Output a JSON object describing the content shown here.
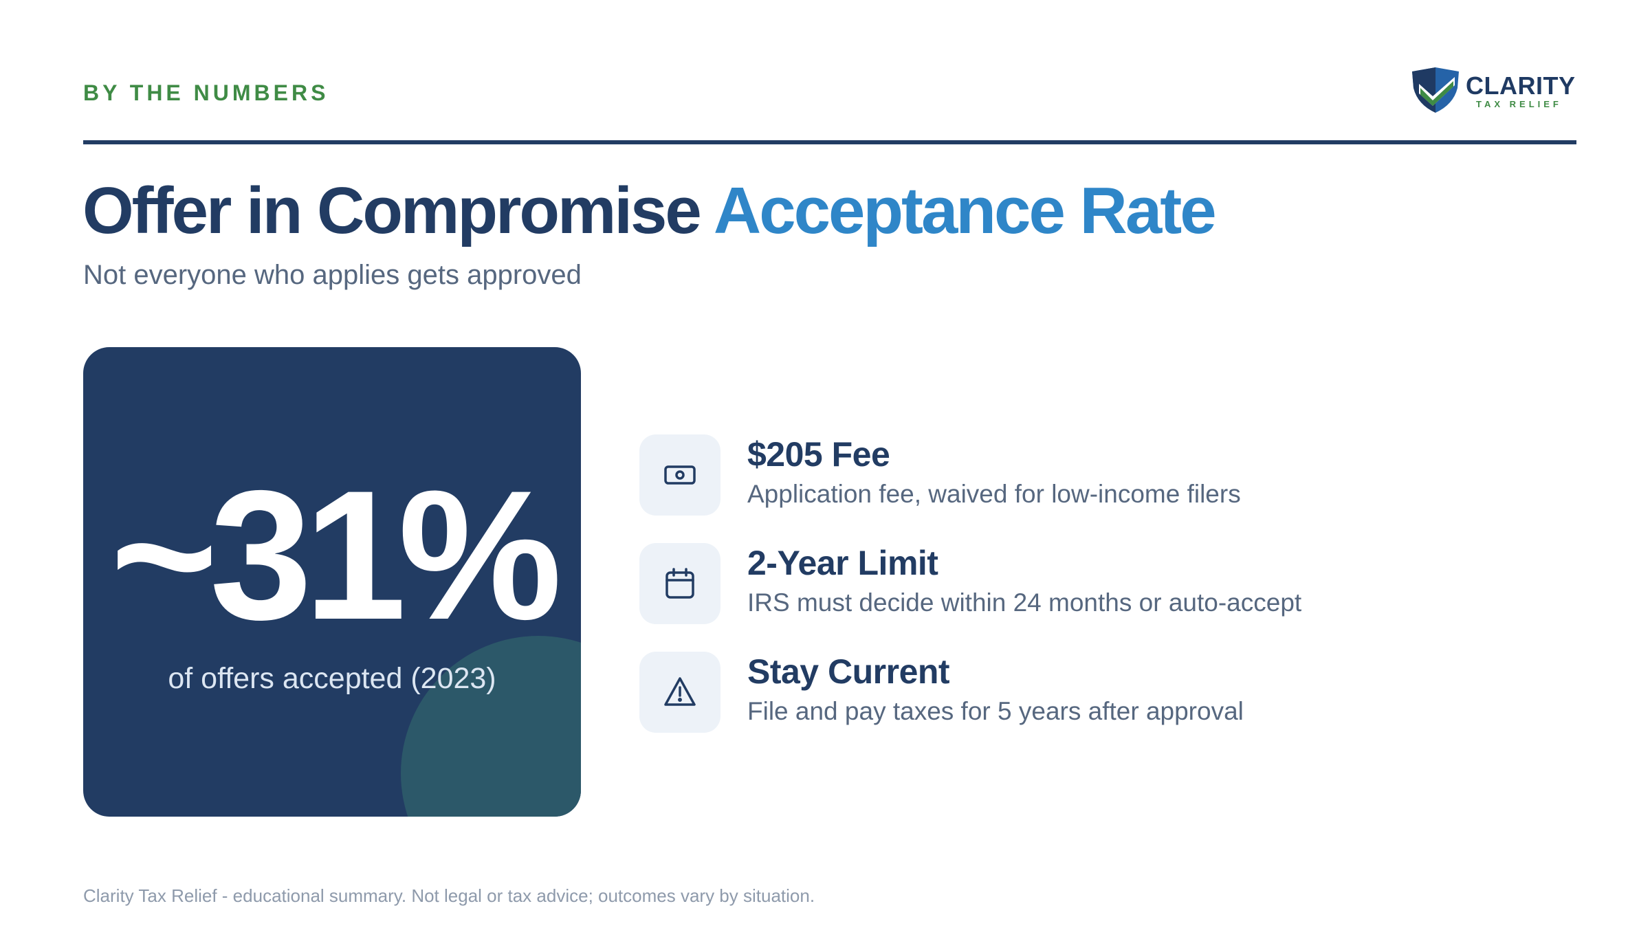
{
  "header": {
    "eyebrow": "BY THE NUMBERS",
    "logo_name": "CLARITY",
    "logo_subtitle": "TAX RELIEF"
  },
  "title": {
    "main": "Offer in Compromise",
    "accent": "Acceptance Rate"
  },
  "subtitle": "Not everyone who applies gets approved",
  "stat": {
    "value": "~31%",
    "caption": "of offers accepted (2023)"
  },
  "features": [
    {
      "icon": "money-icon",
      "title": "$205 Fee",
      "description": "Application fee, waived for low-income filers"
    },
    {
      "icon": "calendar-icon",
      "title": "2-Year Limit",
      "description": "IRS must decide within 24 months or auto-accept"
    },
    {
      "icon": "warning-icon",
      "title": "Stay Current",
      "description": "File and pay taxes for 5 years after approval"
    }
  ],
  "footer": "Clarity Tax Relief - educational summary. Not legal or tax advice; outcomes vary by situation.",
  "colors": {
    "navy": "#223c63",
    "accent_blue": "#2f86c8",
    "green": "#3f8b45",
    "muted_text": "#56677f",
    "icon_tile": "#edf2f8"
  }
}
